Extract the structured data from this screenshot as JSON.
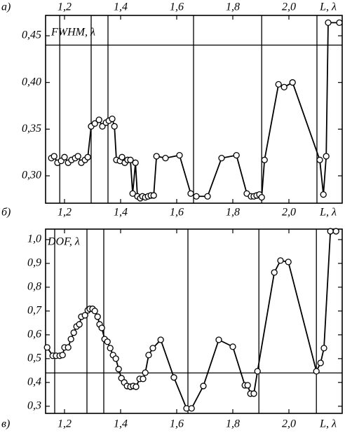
{
  "panel_labels": [
    "а)",
    "б)",
    "в)"
  ],
  "chart_data": [
    {
      "type": "line",
      "ylabel": "FWHM, λ",
      "xlabel": "L, λ",
      "color": "#000000",
      "xlim": [
        1.1325,
        2.19
      ],
      "ylim": [
        0.2707,
        0.4718
      ],
      "xticks": [
        {
          "value": 1.2,
          "label": "1,2"
        },
        {
          "value": 1.4,
          "label": "1,4"
        },
        {
          "value": 1.6,
          "label": "1,6"
        },
        {
          "value": 1.8,
          "label": "1,8"
        },
        {
          "value": 2.0,
          "label": "2,0"
        }
      ],
      "yticks": [
        {
          "value": 0.3,
          "label": "0,30"
        },
        {
          "value": 0.35,
          "label": "0,35"
        },
        {
          "value": 0.4,
          "label": "0,40"
        },
        {
          "value": 0.45,
          "label": "0,45"
        }
      ],
      "hlines": [
        0.44
      ],
      "vlines": [
        1.183,
        1.295,
        1.355,
        1.66,
        1.903,
        2.1
      ],
      "x": [
        1.153,
        1.163,
        1.175,
        1.188,
        1.2,
        1.213,
        1.225,
        1.238,
        1.248,
        1.26,
        1.273,
        1.283,
        1.295,
        1.308,
        1.323,
        1.335,
        1.348,
        1.358,
        1.37,
        1.378,
        1.385,
        1.398,
        1.405,
        1.415,
        1.425,
        1.435,
        1.443,
        1.453,
        1.46,
        1.47,
        1.478,
        1.488,
        1.498,
        1.508,
        1.518,
        1.528,
        1.56,
        1.61,
        1.65,
        1.67,
        1.71,
        1.76,
        1.813,
        1.85,
        1.865,
        1.875,
        1.885,
        1.895,
        1.903,
        1.913,
        1.963,
        1.983,
        2.013,
        2.11,
        2.123,
        2.133,
        2.14,
        2.18
      ],
      "values": [
        0.319,
        0.321,
        0.314,
        0.316,
        0.32,
        0.314,
        0.317,
        0.319,
        0.321,
        0.314,
        0.317,
        0.32,
        0.353,
        0.356,
        0.36,
        0.353,
        0.357,
        0.359,
        0.361,
        0.353,
        0.317,
        0.316,
        0.32,
        0.314,
        0.317,
        0.317,
        0.281,
        0.314,
        0.278,
        0.276,
        0.278,
        0.277,
        0.278,
        0.279,
        0.279,
        0.321,
        0.319,
        0.322,
        0.281,
        0.278,
        0.278,
        0.319,
        0.322,
        0.281,
        0.278,
        0.278,
        0.279,
        0.28,
        0.277,
        0.317,
        0.398,
        0.395,
        0.4,
        0.317,
        0.28,
        0.321,
        0.464,
        0.464
      ]
    },
    {
      "type": "line",
      "ylabel": "DOF, λ",
      "xlabel": "L, λ",
      "color": "#000000",
      "xlim": [
        1.1325,
        2.19
      ],
      "ylim": [
        0.27,
        1.044
      ],
      "xticks": [
        {
          "value": 1.2,
          "label": "1,2"
        },
        {
          "value": 1.4,
          "label": "1,4"
        },
        {
          "value": 1.6,
          "label": "1,6"
        },
        {
          "value": 1.8,
          "label": "1,8"
        },
        {
          "value": 2.0,
          "label": "2,0"
        }
      ],
      "yticks": [
        {
          "value": 0.3,
          "label": "0,3"
        },
        {
          "value": 0.4,
          "label": "0,4"
        },
        {
          "value": 0.5,
          "label": "0,5"
        },
        {
          "value": 0.6,
          "label": "0,6"
        },
        {
          "value": 0.7,
          "label": "0,7"
        },
        {
          "value": 0.8,
          "label": "0,8"
        },
        {
          "value": 0.9,
          "label": "0,9"
        },
        {
          "value": 1.0,
          "label": "1,0"
        }
      ],
      "hlines": [
        0.44
      ],
      "vlines": [
        1.165,
        1.28,
        1.34,
        1.64,
        1.893,
        2.098
      ],
      "x": [
        1.138,
        1.158,
        1.17,
        1.183,
        1.193,
        1.2,
        1.213,
        1.223,
        1.233,
        1.243,
        1.253,
        1.26,
        1.273,
        1.283,
        1.29,
        1.3,
        1.308,
        1.318,
        1.325,
        1.333,
        1.343,
        1.353,
        1.363,
        1.373,
        1.383,
        1.393,
        1.403,
        1.413,
        1.423,
        1.435,
        1.445,
        1.455,
        1.468,
        1.48,
        1.488,
        1.5,
        1.515,
        1.543,
        1.59,
        1.635,
        1.653,
        1.695,
        1.75,
        1.8,
        1.843,
        1.853,
        1.863,
        1.875,
        1.888,
        1.948,
        1.97,
        1.998,
        2.098,
        2.113,
        2.125,
        2.148,
        2.168
      ],
      "values": [
        0.547,
        0.512,
        0.512,
        0.512,
        0.515,
        0.547,
        0.547,
        0.582,
        0.609,
        0.635,
        0.644,
        0.676,
        0.682,
        0.703,
        0.709,
        0.709,
        0.7,
        0.676,
        0.644,
        0.629,
        0.582,
        0.571,
        0.544,
        0.515,
        0.5,
        0.456,
        0.418,
        0.4,
        0.385,
        0.382,
        0.385,
        0.382,
        0.415,
        0.415,
        0.441,
        0.515,
        0.544,
        0.579,
        0.421,
        0.291,
        0.291,
        0.385,
        0.579,
        0.55,
        0.388,
        0.388,
        0.353,
        0.353,
        0.447,
        0.862,
        0.912,
        0.906,
        0.447,
        0.482,
        0.544,
        1.035,
        1.035
      ]
    }
  ]
}
